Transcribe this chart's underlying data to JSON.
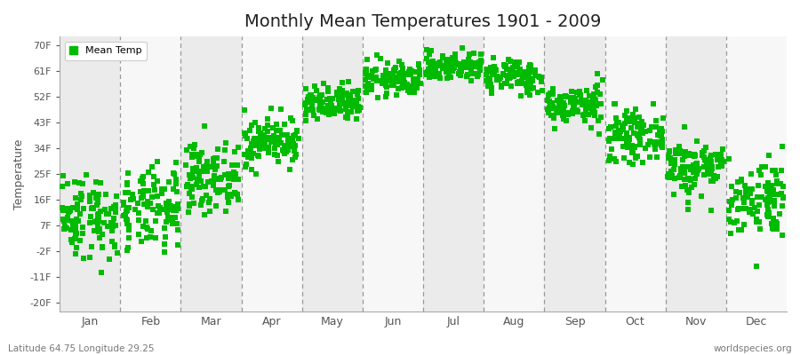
{
  "title": "Monthly Mean Temperatures 1901 - 2009",
  "ylabel": "Temperature",
  "subtitle_left": "Latitude 64.75 Longitude 29.25",
  "subtitle_right": "worldspecies.org",
  "legend_label": "Mean Temp",
  "marker_color": "#00BB00",
  "marker": "s",
  "marker_size": 4,
  "ytick_labels": [
    "-20F",
    "-11F",
    "-2F",
    "7F",
    "16F",
    "25F",
    "34F",
    "43F",
    "52F",
    "61F",
    "70F"
  ],
  "ytick_values": [
    -20,
    -11,
    -2,
    7,
    16,
    25,
    34,
    43,
    52,
    61,
    70
  ],
  "ylim": [
    -23,
    73
  ],
  "months": [
    "Jan",
    "Feb",
    "Mar",
    "Apr",
    "May",
    "Jun",
    "Jul",
    "Aug",
    "Sep",
    "Oct",
    "Nov",
    "Dec"
  ],
  "band_colors": [
    "#EBEBEB",
    "#F7F7F7"
  ],
  "n_years": 109,
  "monthly_means_c": [
    -12.0,
    -11.0,
    -4.5,
    2.5,
    9.5,
    14.5,
    17.0,
    15.0,
    9.5,
    3.5,
    -2.5,
    -8.5
  ],
  "monthly_std_c": [
    4.2,
    4.0,
    3.2,
    2.4,
    1.8,
    1.6,
    1.4,
    1.6,
    1.9,
    2.3,
    2.8,
    3.8
  ]
}
